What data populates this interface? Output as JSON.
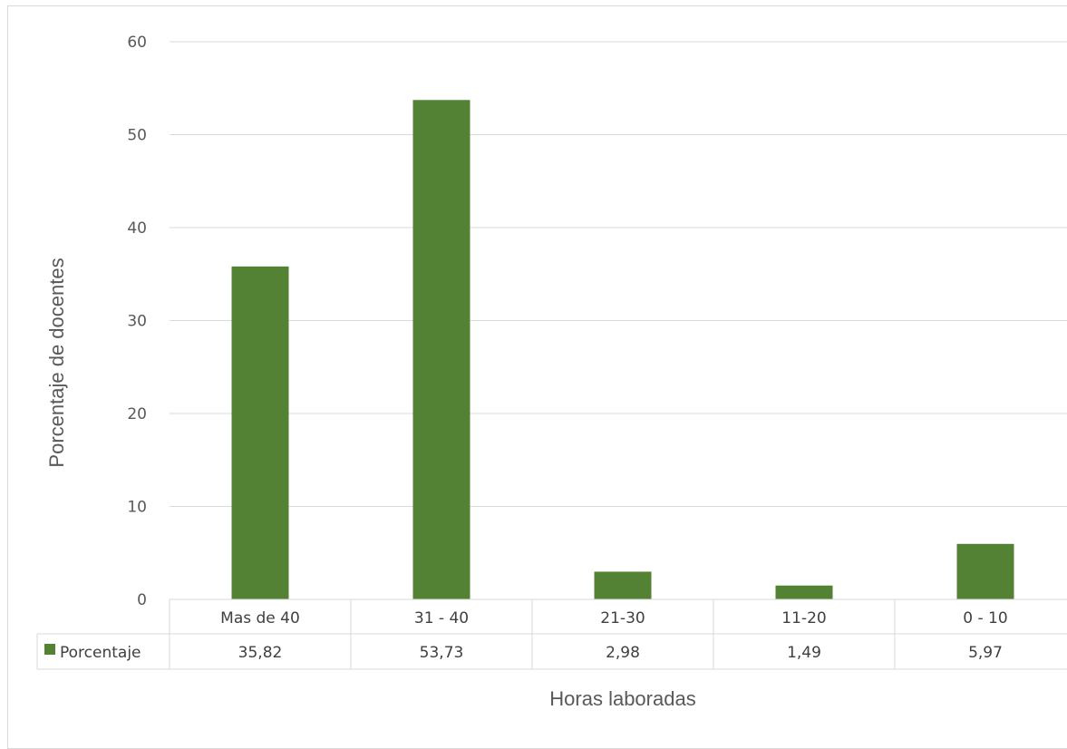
{
  "chart_data": {
    "type": "bar",
    "categories": [
      "Mas de 40",
      "31 - 40",
      "21-30",
      "11-20",
      "0 - 10"
    ],
    "series": [
      {
        "name": "Porcentaje",
        "values": [
          35.82,
          53.73,
          2.98,
          1.49,
          5.97
        ],
        "labels": [
          "35,82",
          "53,73",
          "2,98",
          "1,49",
          "5,97"
        ]
      }
    ],
    "ylim": [
      0,
      60
    ],
    "yticks": [
      "0",
      "10",
      "20",
      "30",
      "40",
      "50",
      "60"
    ],
    "xlabel": "Horas laboradas",
    "ylabel": "Porcentaje de docentes",
    "grid": true,
    "data_table": true,
    "colors": {
      "bar": "#548235",
      "grid": "#d9d9d9",
      "text": "#595959"
    }
  }
}
